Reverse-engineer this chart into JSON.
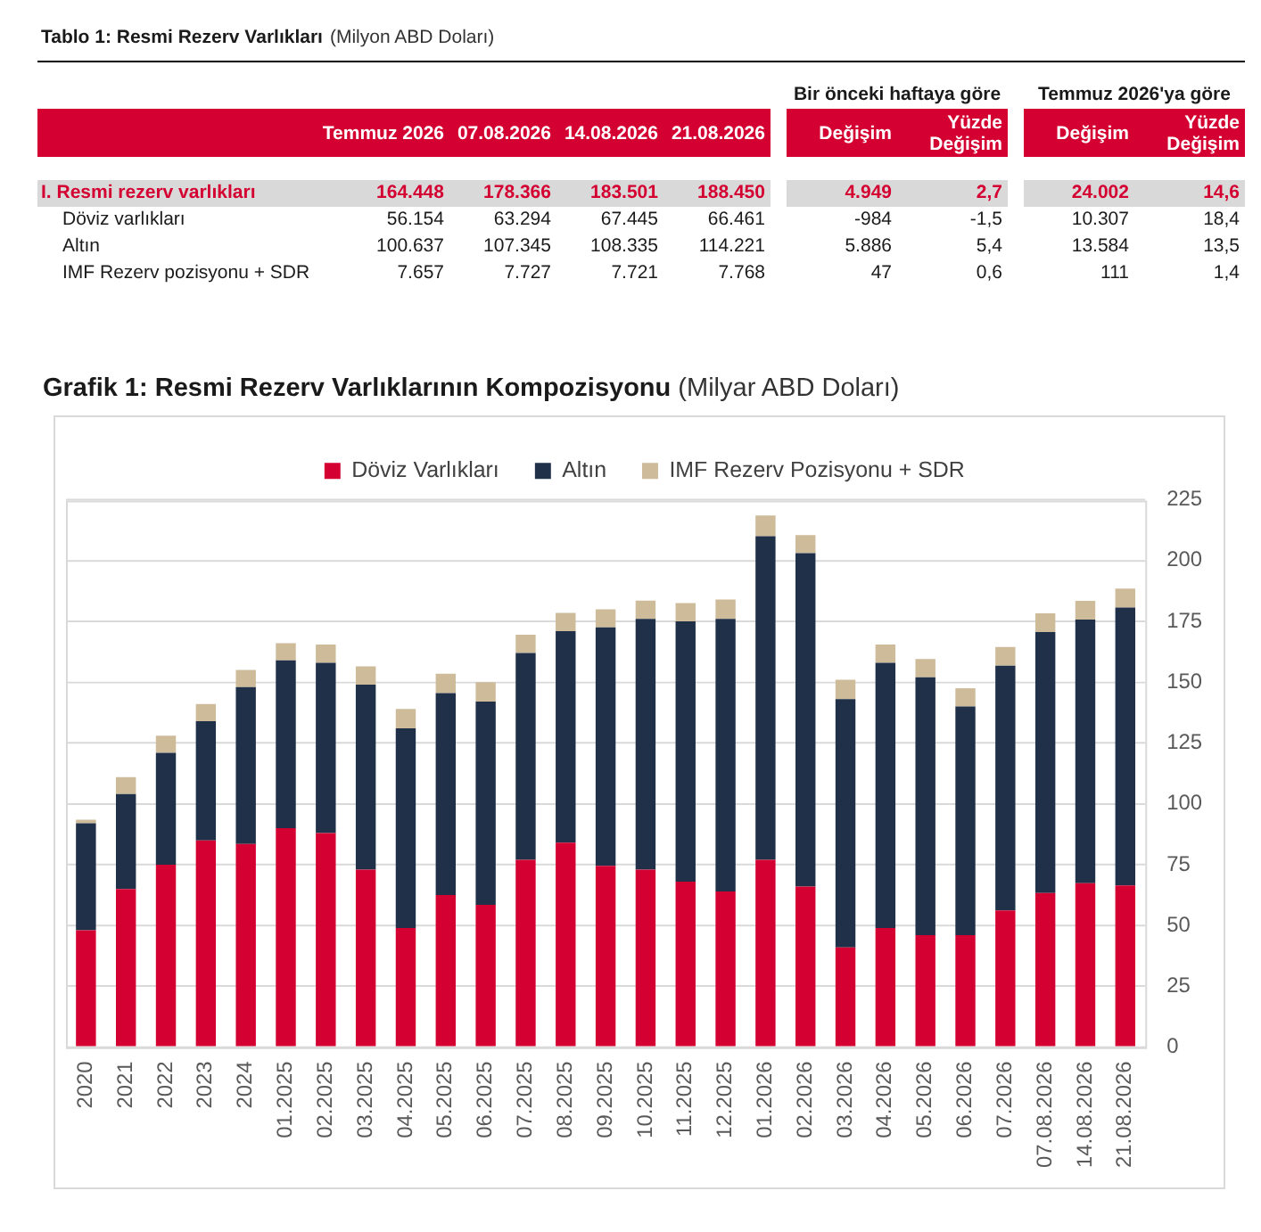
{
  "chart_data": [
    {
      "type": "other",
      "title": "Tablo 1: Resmi Rezerv Varlıkları",
      "subtitle": "(Milyon ABD Doları)",
      "annotations": [
        "Bir önceki haftaya göre",
        "Temmuz 2026'ya göre"
      ],
      "categories": [
        "Temmuz 2026",
        "07.08.2026",
        "14.08.2026",
        "21.08.2026",
        "Değişim",
        "Yüzde Değişim",
        "Değişim",
        "Yüzde Değişim"
      ],
      "y_categories": [
        "I. Resmi rezerv varlıkları",
        "Döviz varlıkları",
        "Altın",
        "IMF Rezerv pozisyonu + SDR"
      ],
      "cell_labels": [
        [
          "164.448",
          "178.366",
          "183.501",
          "188.450",
          "4.949",
          "2,7",
          "24.002",
          "14,6"
        ],
        [
          "56.154",
          "63.294",
          "67.445",
          "66.461",
          "-984",
          "-1,5",
          "10.307",
          "18,4"
        ],
        [
          "100.637",
          "107.345",
          "108.335",
          "114.221",
          "5.886",
          "5,4",
          "13.584",
          "13,5"
        ],
        [
          "7.657",
          "7.727",
          "7.721",
          "7.768",
          "47",
          "0,6",
          "111",
          "1,4"
        ]
      ]
    },
    {
      "type": "bar",
      "title": "Grafik 1: Resmi Rezerv Varlıklarının Kompozisyonu",
      "subtitle": "(Milyar ABD Doları)",
      "categories": [
        "2020",
        "2021",
        "2022",
        "2023",
        "2024",
        "01.2025",
        "02.2025",
        "03.2025",
        "04.2025",
        "05.2025",
        "06.2025",
        "07.2025",
        "08.2025",
        "09.2025",
        "10.2025",
        "11.2025",
        "12.2025",
        "01.2026",
        "02.2026",
        "03.2026",
        "04.2026",
        "05.2026",
        "06.2026",
        "07.2026",
        "07.08.2026",
        "14.08.2026",
        "21.08.2026"
      ],
      "stacked": true,
      "series": [
        {
          "name": "Döviz Varlıkları",
          "color": "#d40032",
          "values": [
            48,
            65,
            75,
            85,
            83.5,
            90,
            88,
            73,
            49,
            62.5,
            58.5,
            77,
            84,
            74.5,
            73,
            68,
            64,
            77,
            66,
            41,
            49,
            46,
            46,
            56.2,
            63.3,
            67.4,
            66.5
          ]
        },
        {
          "name": "Altın",
          "color": "#1f3048",
          "values": [
            44,
            39,
            46,
            49,
            64.5,
            69,
            70,
            76,
            82,
            83,
            83.5,
            85,
            87,
            98,
            103,
            107,
            112,
            133,
            137,
            102,
            109,
            106,
            94,
            100.6,
            107.3,
            108.3,
            114.2
          ]
        },
        {
          "name": "IMF Rezerv Pozisyonu + SDR",
          "color": "#cdbb99",
          "values": [
            1.5,
            7,
            7,
            7,
            7,
            7,
            7.5,
            7.5,
            8,
            8,
            8,
            7.5,
            7.5,
            7.5,
            7.5,
            7.5,
            8,
            8.5,
            7.5,
            8,
            7.5,
            7.5,
            7.5,
            7.7,
            7.7,
            7.7,
            7.8
          ]
        }
      ],
      "ylim": [
        0,
        225
      ],
      "yticks": [
        0,
        25,
        50,
        75,
        100,
        125,
        150,
        175,
        200,
        225
      ],
      "grid": "y",
      "legend": "top"
    }
  ]
}
